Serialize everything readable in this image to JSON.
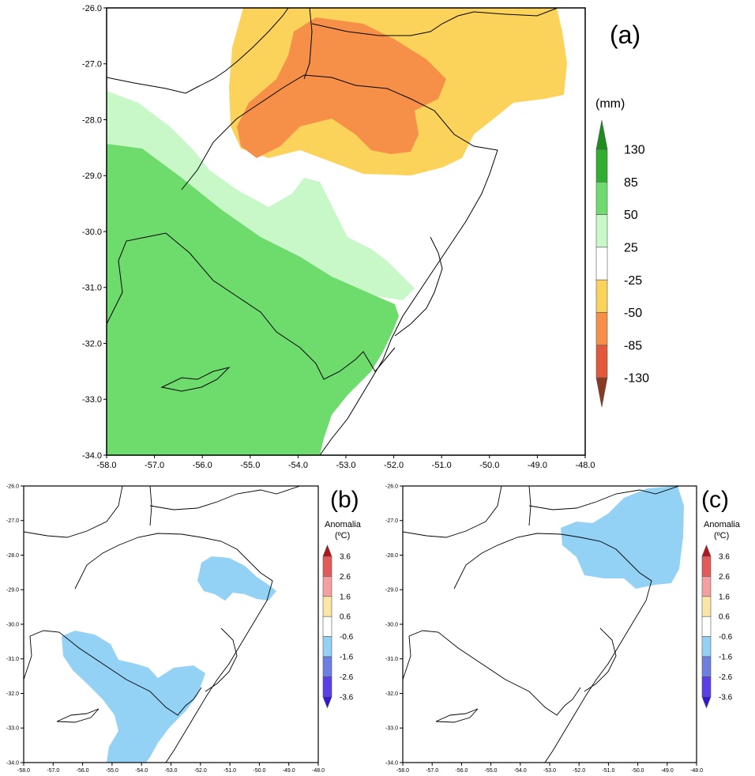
{
  "panels": [
    {
      "id": "a",
      "letter": "(a)",
      "colorbar_title": "(mm)",
      "colorbar_labels": [
        "130",
        "85",
        "50",
        "25",
        "-25",
        "-50",
        "-85",
        "-130"
      ],
      "colorbar_colors": [
        "#1e8c1e",
        "#2fae2f",
        "#6ddc6d",
        "#c8f7c8",
        "#ffffff",
        "#fcd35a",
        "#f69048",
        "#e1583a",
        "#8a3a24"
      ],
      "lat_labels": [
        "-26.0",
        "-27.0",
        "-28.0",
        "-29.0",
        "-30.0",
        "-31.0",
        "-32.0",
        "-33.0",
        "-34.0"
      ],
      "lon_labels": [
        "-58.0",
        "-57.0",
        "-56.0",
        "-55.0",
        "-54.0",
        "-53.0",
        "-52.0",
        "-51.0",
        "-50.0",
        "-49.0",
        "-48.0"
      ]
    },
    {
      "id": "b",
      "letter": "(b)",
      "colorbar_title": "Anomalia",
      "colorbar_unit": "(ºC)",
      "colorbar_labels": [
        "3.6",
        "2.6",
        "1.6",
        "0.6",
        "-0.6",
        "-1.6",
        "-2.6",
        "-3.6"
      ],
      "colorbar_colors": [
        "#b2141e",
        "#e25a5a",
        "#f5a0a0",
        "#fbe6a8",
        "#ffffff",
        "#94d2f5",
        "#6e7ee0",
        "#5a3ee6",
        "#3218d2"
      ],
      "lat_labels": [
        "-26.0",
        "-27.0",
        "-28.0",
        "-29.0",
        "-30.0",
        "-31.0",
        "-32.0",
        "-33.0",
        "-34.0"
      ],
      "lon_labels": [
        "-58.0",
        "-57.0",
        "-56.0",
        "-55.0",
        "-54.0",
        "-53.0",
        "-52.0",
        "-51.0",
        "-50.0",
        "-49.0",
        "-48.0"
      ]
    },
    {
      "id": "c",
      "letter": "(c)",
      "colorbar_title": "Anomalia",
      "colorbar_unit": "(ºC)",
      "colorbar_labels": [
        "3.6",
        "2.6",
        "1.6",
        "0.6",
        "-0.6",
        "-1.6",
        "-2.6",
        "-3.6"
      ],
      "colorbar_colors": [
        "#b2141e",
        "#e25a5a",
        "#f5a0a0",
        "#fbe6a8",
        "#ffffff",
        "#94d2f5",
        "#6e7ee0",
        "#5a3ee6",
        "#3218d2"
      ],
      "lat_labels": [
        "-26.0",
        "-27.0",
        "-28.0",
        "-29.0",
        "-30.0",
        "-31.0",
        "-32.0",
        "-33.0",
        "-34.0"
      ],
      "lon_labels": [
        "-58.0",
        "-57.0",
        "-56.0",
        "-55.0",
        "-54.0",
        "-53.0",
        "-52.0",
        "-51.0",
        "-50.0",
        "-49.0",
        "-48.0"
      ]
    }
  ]
}
